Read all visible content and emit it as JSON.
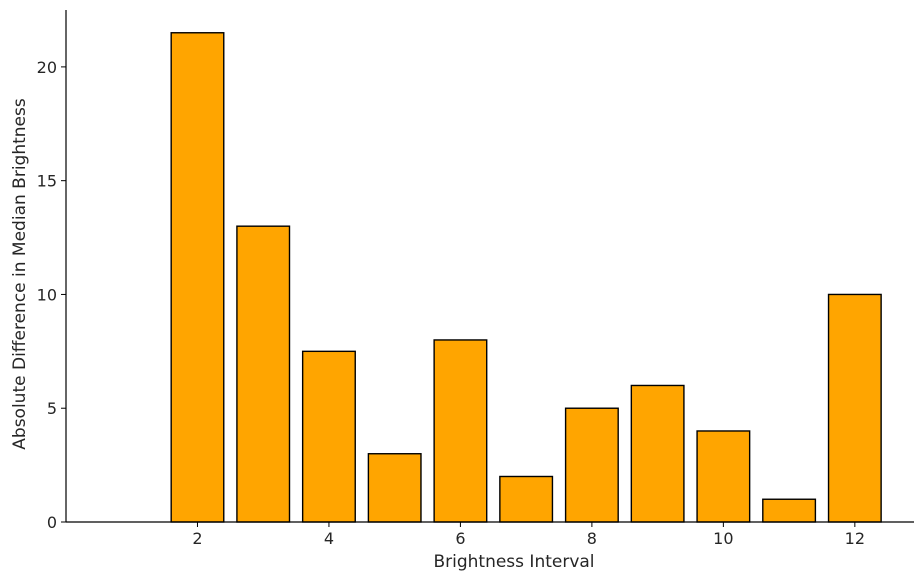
{
  "chart_data": {
    "type": "bar",
    "title": "",
    "xlabel": "Brightness Interval",
    "ylabel": "Absolute Difference in Median Brightness",
    "x": [
      2,
      3,
      4,
      5,
      6,
      7,
      8,
      9,
      10,
      11,
      12
    ],
    "values": [
      21.5,
      13,
      7.5,
      3,
      8,
      2,
      5,
      6,
      4,
      1,
      10
    ],
    "xlim": [
      0,
      12.9
    ],
    "ylim": [
      0,
      22.5
    ],
    "x_ticks": [
      2,
      4,
      6,
      8,
      10,
      12
    ],
    "y_ticks": [
      0,
      5,
      10,
      15,
      20
    ],
    "grid": false,
    "colors": {
      "bar_fill": "#FFA500",
      "bar_edge": "#000000"
    }
  }
}
